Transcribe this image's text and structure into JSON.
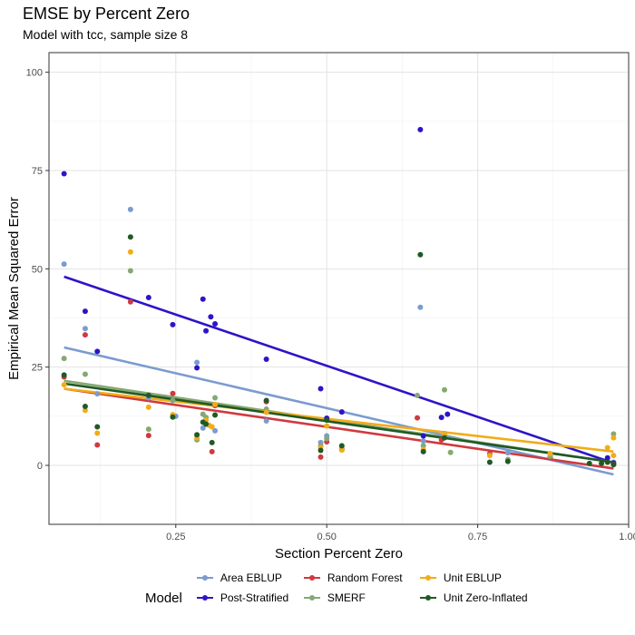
{
  "header": {
    "title": "EMSE by Percent Zero",
    "subtitle": "Model with tcc, sample size 8"
  },
  "legend": {
    "title": "Model"
  },
  "chart_data": {
    "type": "scatter",
    "title": "EMSE by Percent Zero",
    "subtitle": "Model with tcc, sample size 8",
    "xlabel": "Section Percent Zero",
    "ylabel": "Empirical Mean Squared Error",
    "xlim": [
      0.04,
      1.0
    ],
    "ylim": [
      -15,
      105
    ],
    "xticks": [
      0.25,
      0.5,
      0.75,
      1.0
    ],
    "xtick_labels": [
      "0.25",
      "0.50",
      "0.75",
      "1.00"
    ],
    "yticks": [
      0,
      25,
      50,
      75,
      100
    ],
    "ytick_labels": [
      "0",
      "25",
      "50",
      "75",
      "100"
    ],
    "grid": true,
    "legend_position": "bottom",
    "series": [
      {
        "name": "Area EBLUP",
        "color": "#7b9bd0",
        "trend": [
          [
            0.065,
            30.0
          ],
          [
            0.975,
            -2.3
          ]
        ],
        "points": [
          [
            0.065,
            51.2
          ],
          [
            0.1,
            34.8
          ],
          [
            0.12,
            18.2
          ],
          [
            0.175,
            65.1
          ],
          [
            0.205,
            17.2
          ],
          [
            0.25,
            12.5
          ],
          [
            0.285,
            26.2
          ],
          [
            0.295,
            9.5
          ],
          [
            0.315,
            8.8
          ],
          [
            0.4,
            11.3
          ],
          [
            0.49,
            5.8
          ],
          [
            0.5,
            7.5
          ],
          [
            0.525,
            13.6
          ],
          [
            0.655,
            40.2
          ],
          [
            0.66,
            6.2
          ],
          [
            0.695,
            8.1
          ],
          [
            0.8,
            3.2
          ],
          [
            0.87,
            2.0
          ],
          [
            0.975,
            0.8
          ]
        ]
      },
      {
        "name": "Post-Stratified",
        "color": "#2d14c8",
        "trend": [
          [
            0.065,
            48.0
          ],
          [
            0.975,
            0.6
          ]
        ],
        "points": [
          [
            0.065,
            74.2
          ],
          [
            0.1,
            39.2
          ],
          [
            0.12,
            29.0
          ],
          [
            0.205,
            42.7
          ],
          [
            0.245,
            35.8
          ],
          [
            0.285,
            24.8
          ],
          [
            0.295,
            42.3
          ],
          [
            0.3,
            34.2
          ],
          [
            0.308,
            37.8
          ],
          [
            0.315,
            36.0
          ],
          [
            0.4,
            27.0
          ],
          [
            0.49,
            19.5
          ],
          [
            0.5,
            12.0
          ],
          [
            0.525,
            13.6
          ],
          [
            0.655,
            85.4
          ],
          [
            0.66,
            7.5
          ],
          [
            0.69,
            12.2
          ],
          [
            0.7,
            13.0
          ],
          [
            0.965,
            1.9
          ],
          [
            0.975,
            0.6
          ]
        ]
      },
      {
        "name": "Random Forest",
        "color": "#d0393e",
        "trend": [
          [
            0.065,
            19.5
          ],
          [
            0.975,
            -0.8
          ]
        ],
        "points": [
          [
            0.065,
            22.5
          ],
          [
            0.1,
            33.2
          ],
          [
            0.12,
            5.2
          ],
          [
            0.175,
            41.6
          ],
          [
            0.205,
            7.6
          ],
          [
            0.245,
            18.3
          ],
          [
            0.31,
            3.5
          ],
          [
            0.315,
            15.2
          ],
          [
            0.4,
            16.2
          ],
          [
            0.49,
            2.1
          ],
          [
            0.5,
            6.0
          ],
          [
            0.525,
            4.0
          ],
          [
            0.65,
            12.1
          ],
          [
            0.69,
            6.5
          ],
          [
            0.77,
            3.0
          ],
          [
            0.87,
            2.0
          ],
          [
            0.975,
            0.3
          ]
        ]
      },
      {
        "name": "SMERF",
        "color": "#86a873",
        "trend": [
          [
            0.065,
            21.5
          ],
          [
            0.975,
            0.8
          ]
        ],
        "points": [
          [
            0.065,
            27.2
          ],
          [
            0.1,
            23.2
          ],
          [
            0.175,
            49.5
          ],
          [
            0.205,
            9.2
          ],
          [
            0.245,
            16.5
          ],
          [
            0.285,
            6.5
          ],
          [
            0.295,
            13.0
          ],
          [
            0.3,
            12.2
          ],
          [
            0.315,
            17.2
          ],
          [
            0.4,
            14.3
          ],
          [
            0.49,
            5.0
          ],
          [
            0.5,
            6.8
          ],
          [
            0.525,
            4.3
          ],
          [
            0.65,
            17.8
          ],
          [
            0.66,
            5.0
          ],
          [
            0.695,
            19.2
          ],
          [
            0.705,
            3.3
          ],
          [
            0.8,
            1.5
          ],
          [
            0.87,
            2.3
          ],
          [
            0.975,
            8.0
          ]
        ]
      },
      {
        "name": "Unit EBLUP",
        "color": "#f2ac18",
        "trend": [
          [
            0.065,
            19.5
          ],
          [
            0.975,
            3.5
          ]
        ],
        "points": [
          [
            0.065,
            20.5
          ],
          [
            0.1,
            14.0
          ],
          [
            0.12,
            8.2
          ],
          [
            0.175,
            54.3
          ],
          [
            0.205,
            14.8
          ],
          [
            0.245,
            12.9
          ],
          [
            0.285,
            7.0
          ],
          [
            0.3,
            11.5
          ],
          [
            0.305,
            10.2
          ],
          [
            0.31,
            9.8
          ],
          [
            0.315,
            15.5
          ],
          [
            0.4,
            13.5
          ],
          [
            0.49,
            4.5
          ],
          [
            0.5,
            10.0
          ],
          [
            0.525,
            3.9
          ],
          [
            0.66,
            4.0
          ],
          [
            0.695,
            8.0
          ],
          [
            0.77,
            2.5
          ],
          [
            0.87,
            3.0
          ],
          [
            0.965,
            4.5
          ],
          [
            0.975,
            7.0
          ],
          [
            0.975,
            2.5
          ]
        ]
      },
      {
        "name": "Unit Zero-Inflated",
        "color": "#1f5a25",
        "trend": [
          [
            0.065,
            20.8
          ],
          [
            0.975,
            0.8
          ]
        ],
        "points": [
          [
            0.065,
            23.0
          ],
          [
            0.1,
            15.0
          ],
          [
            0.12,
            9.8
          ],
          [
            0.175,
            58.1
          ],
          [
            0.205,
            17.8
          ],
          [
            0.245,
            12.3
          ],
          [
            0.285,
            7.8
          ],
          [
            0.295,
            11.0
          ],
          [
            0.3,
            10.5
          ],
          [
            0.31,
            5.8
          ],
          [
            0.315,
            12.8
          ],
          [
            0.4,
            16.5
          ],
          [
            0.49,
            3.8
          ],
          [
            0.5,
            11.5
          ],
          [
            0.525,
            5.0
          ],
          [
            0.655,
            53.6
          ],
          [
            0.66,
            3.5
          ],
          [
            0.695,
            7.0
          ],
          [
            0.77,
            0.8
          ],
          [
            0.8,
            1.0
          ],
          [
            0.935,
            0.5
          ],
          [
            0.955,
            0.5
          ],
          [
            0.965,
            0.8
          ],
          [
            0.975,
            0.2
          ]
        ]
      }
    ]
  }
}
